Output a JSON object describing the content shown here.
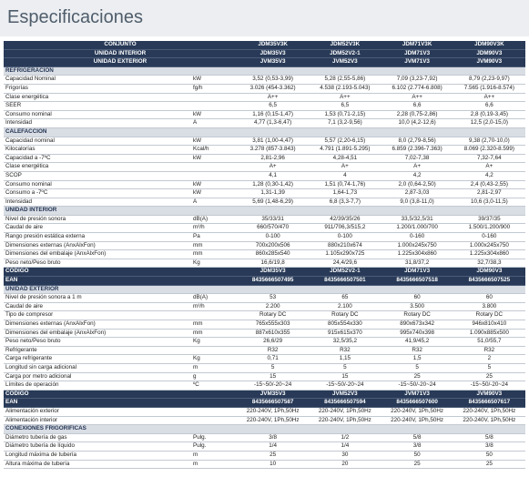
{
  "title": "Especificaciones",
  "table": {
    "blocks": [
      {
        "dark_rows": [
          [
            "CONJUNTO",
            "JDM35V3K",
            "JDM52V3K",
            "JDM71V3K",
            "JDM90V3K"
          ],
          [
            "UNIDAD INTERIOR",
            "JDM35V3",
            "JDM52V2-1",
            "JDM71V3",
            "JDM90V3"
          ],
          [
            "UNIDAD EXTERIOR",
            "JVM35V3",
            "JVM52V3",
            "JVM71V3",
            "JVM90V3"
          ]
        ]
      },
      {
        "section": "REFRIGERACIÓN",
        "rows": [
          [
            "Capacidad Nominal",
            "kW",
            "3,52 (0,53-3,99)",
            "5,28 (2,55-5,86)",
            "7,09 (3,23-7,92)",
            "8,79 (2,23-9,97)"
          ],
          [
            "Frigorías",
            "fg/h",
            "3.026 (454-3.362)",
            "4.538 (2.193-5.043)",
            "6.102 (2.774-6.808)",
            "7.565 (1.916-8.574)"
          ],
          [
            "Clase energética",
            null,
            "A++",
            "A++",
            "A++",
            "A++"
          ],
          [
            "SEER",
            null,
            "6,5",
            "6,5",
            "6,6",
            "6,6"
          ],
          [
            "Consumo nominal",
            "kW",
            "1,16 (0,15-1,47)",
            "1,53 (0,71-2,15)",
            "2,28 (0,75-2,86)",
            "2,8 (0,19-3,45)"
          ],
          [
            "Intensidad",
            "A",
            "4,77 (1,3-6,47)",
            "7,1 (3,2-9,56)",
            "10,0 (4,2-12,6)",
            "12,5 (2,0-15,0)"
          ]
        ]
      },
      {
        "section": "CALEFACCIÓN",
        "rows": [
          [
            "Capacidad nominal",
            "kW",
            "3,81 (1,00-4,47)",
            "5,57 (2,20-6,15)",
            "8,0 (2,79-8,56)",
            "9,38 (2,70-10,0)"
          ],
          [
            "Kilocalorías",
            "Kcal/h",
            "3.278 (857-3.843)",
            "4.791 (1.891-5.295)",
            "6.859 (2.396-7.363)",
            "8.069 (2.320-8.599)"
          ],
          [
            "Capacidad a -7ºC",
            "kW",
            "2,81-2,96",
            "4,28-4,51",
            "7,02-7,38",
            "7,32-7,64"
          ],
          [
            "Clase energética",
            null,
            "A+",
            "A+",
            "A+",
            "A+"
          ],
          [
            "SCOP",
            null,
            "4,1",
            "4",
            "4,2",
            "4,2"
          ],
          [
            "Consumo nominal",
            "kW",
            "1,28 (0,30-1,42)",
            "1,51 (0,74-1,76)",
            "2,0 (0,64-2,50)",
            "2,4 (0,43-2,55)"
          ],
          [
            "Consumo a -7ºC",
            "kW",
            "1,31-1,39",
            "1,64-1,73",
            "2,87-3,03",
            "2,81-2,97"
          ],
          [
            "Intensidad",
            "A",
            "5,69 (1,48-6,29)",
            "6,8 (3,3-7,7)",
            "9,0 (3,8-11,0)",
            "10,6 (3,0-11,5)"
          ]
        ]
      },
      {
        "section": "UNIDAD INTERIOR",
        "rows": [
          [
            "Nivel de presión sonora",
            "dB(A)",
            "35/33/31",
            "42/39/35/26",
            "33,5/32,5/31",
            "39/37/35"
          ],
          [
            "Caudal de aire",
            "m³/h",
            "660/570/470",
            "911/706,3/515,2",
            "1.200/1.000/700",
            "1.500/1.200/900"
          ],
          [
            "Rango presión estática externa",
            "Pa",
            "0-100",
            "0-100",
            "0-160",
            "0-160"
          ],
          [
            "Dimensiones externas (AnxAlxFon)",
            "mm",
            "700x200x506",
            "880x210x674",
            "1.000x245x750",
            "1.000x245x750"
          ],
          [
            "Dimensiones del embalaje (AnxAlxFon)",
            "mm",
            "860x285x540",
            "1.105x290x725",
            "1.225x304x860",
            "1.225x304x860"
          ],
          [
            "Peso neto/Peso bruto",
            "Kg",
            "16,6/19,8",
            "24,4/29,6",
            "31,8/37,2",
            "32,7/38,3"
          ]
        ]
      },
      {
        "dark_rows": [
          [
            "CÓDIGO",
            "JDM35V3",
            "JDM52V2-1",
            "JDM71V3",
            "JDM90V3"
          ],
          [
            "EAN",
            "8435666507495",
            "8435666507501",
            "8435666507518",
            "8435666507525"
          ]
        ]
      },
      {
        "section": "UNIDAD EXTERIOR",
        "rows": [
          [
            "Nivel de presión sonora a 1 m",
            "dB(A)",
            "53",
            "65",
            "60",
            "60"
          ],
          [
            "Caudal de aire",
            "m³/h",
            "2.200",
            "2.100",
            "3.500",
            "3.800"
          ],
          [
            "Tipo de compresor",
            null,
            "Rotary DC",
            "Rotary DC",
            "Rotary DC",
            "Rotary DC"
          ],
          [
            "Dimensiones externas (AnxAlxFon)",
            "mm",
            "765x555x303",
            "805x554x330",
            "890x673x342",
            "946x810x410"
          ],
          [
            "Dimensiones del embalaje (AnxAlxFon)",
            "mm",
            "887x610x355",
            "915x615x370",
            "995x740x398",
            "1.090x885x500"
          ],
          [
            "Peso neto/Peso bruto",
            "Kg",
            "26,6/29",
            "32,5/35,2",
            "41,9/45,2",
            "51,0/55,7"
          ],
          [
            "Refrigerante",
            null,
            "R32",
            "R32",
            "R32",
            "R32"
          ],
          [
            "Carga refrigerante",
            "Kg",
            "0,71",
            "1,15",
            "1,5",
            "2"
          ],
          [
            "Longitud sin carga adicional",
            "m",
            "5",
            "5",
            "5",
            "5"
          ],
          [
            "Carga por metro adicional",
            "g",
            "15",
            "15",
            "25",
            "25"
          ],
          [
            "Límites de operación",
            "ºC",
            "-15~50/-20~24",
            "-15~50/-20~24",
            "-15~50/-20~24",
            "-15~50/-20~24"
          ]
        ]
      },
      {
        "dark_rows": [
          [
            "CÓDIGO",
            "JVM35V3",
            "JVM52V3",
            "JVM71V3",
            "JVM90V3"
          ],
          [
            "EAN",
            "8435666507587",
            "8435666507594",
            "8435666507600",
            "8435666507617"
          ]
        ]
      },
      {
        "rows": [
          [
            "Alimentación exterior",
            null,
            "220-240V, 1Ph,50Hz",
            "220-240V, 1Ph,50Hz",
            "220-240V, 1Ph,50Hz",
            "220-240V, 1Ph,50Hz"
          ],
          [
            "Alimentación interior",
            null,
            "220-240V, 1Ph,50Hz",
            "220-240V, 1Ph,50Hz",
            "220-240V, 1Ph,50Hz",
            "220-240V, 1Ph,50Hz"
          ]
        ]
      },
      {
        "section": "CONEXIONES FRIGORÍFICAS",
        "rows": [
          [
            "Diámetro tubería de gas",
            "Pulg.",
            "3/8",
            "1/2",
            "5/8",
            "5/8"
          ],
          [
            "Diámetro tubería de líquido",
            "Pulg.",
            "1/4",
            "1/4",
            "3/8",
            "3/8"
          ],
          [
            "Longitud máxima de tubería",
            "m",
            "25",
            "30",
            "50",
            "50"
          ],
          [
            "Altura máxima de tubería",
            "m",
            "10",
            "20",
            "25",
            "25"
          ]
        ]
      }
    ]
  }
}
